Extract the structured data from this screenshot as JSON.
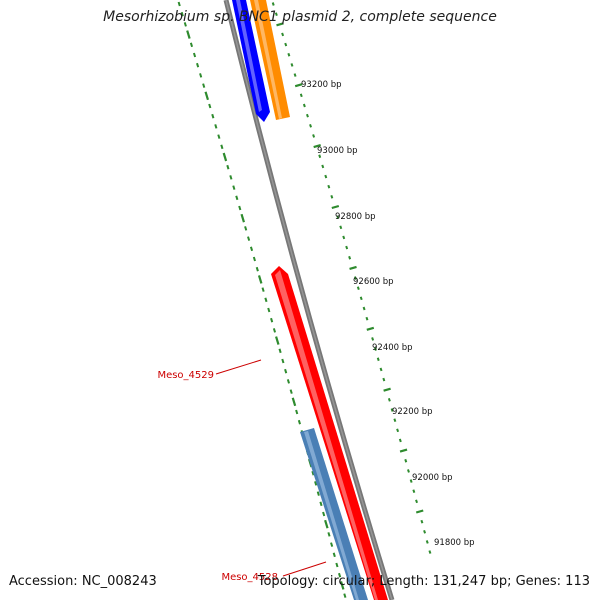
{
  "title": "Mesorhizobium sp. BNC1 plasmid 2, complete sequence",
  "footer": {
    "accession": "Accession: NC_008243",
    "summary": "Topology: circular; Length: 131,247 bp; Genes: 113"
  },
  "ticks": [
    "93200 bp",
    "93000 bp",
    "92800 bp",
    "92600 bp",
    "92400 bp",
    "92200 bp",
    "92000 bp",
    "91800 bp"
  ],
  "genes": [
    {
      "label": "Meso_4529",
      "color": "#ff0000"
    },
    {
      "label": "Meso_4528",
      "color": "#4a7fb5"
    }
  ],
  "colors": {
    "backbone": "#777777",
    "tick": "#2e8b2e",
    "gene_blue": "#0000ff",
    "gene_orange": "#ff8c00",
    "label_red": "#cc0000"
  }
}
